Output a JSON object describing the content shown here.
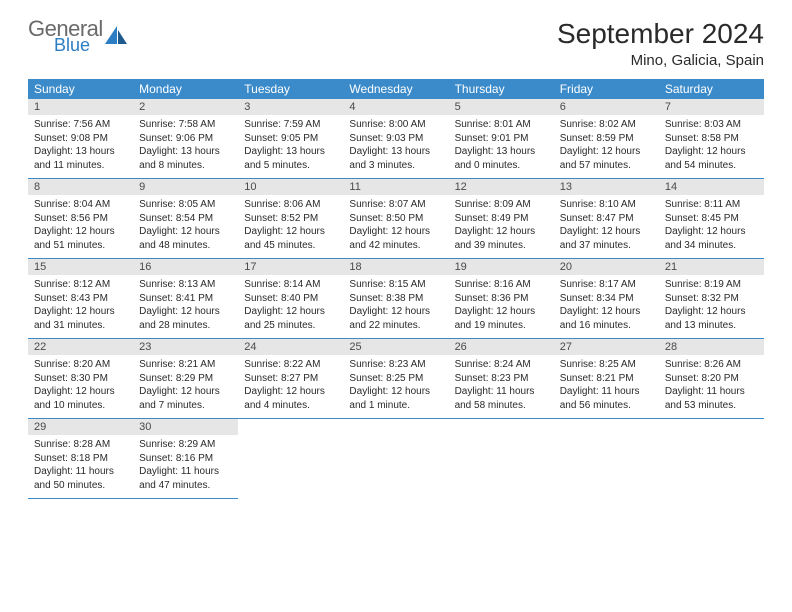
{
  "logo": {
    "general": "General",
    "blue": "Blue"
  },
  "title": "September 2024",
  "location": "Mino, Galicia, Spain",
  "weekdays": [
    "Sunday",
    "Monday",
    "Tuesday",
    "Wednesday",
    "Thursday",
    "Friday",
    "Saturday"
  ],
  "colors": {
    "header_bg": "#3b8ac9",
    "header_text": "#ffffff",
    "daynum_bg": "#e6e6e6",
    "daynum_text": "#4a4a4a",
    "body_text": "#2a2a2a",
    "logo_gray": "#6a6a6a",
    "logo_blue": "#2b7dc4",
    "border": "#3b8ac9"
  },
  "fonts": {
    "title_size": 28,
    "location_size": 15,
    "weekday_size": 12,
    "daynum_size": 11,
    "body_size": 10
  },
  "weeks": [
    [
      {
        "n": "1",
        "sr": "Sunrise: 7:56 AM",
        "ss": "Sunset: 9:08 PM",
        "d1": "Daylight: 13 hours",
        "d2": "and 11 minutes."
      },
      {
        "n": "2",
        "sr": "Sunrise: 7:58 AM",
        "ss": "Sunset: 9:06 PM",
        "d1": "Daylight: 13 hours",
        "d2": "and 8 minutes."
      },
      {
        "n": "3",
        "sr": "Sunrise: 7:59 AM",
        "ss": "Sunset: 9:05 PM",
        "d1": "Daylight: 13 hours",
        "d2": "and 5 minutes."
      },
      {
        "n": "4",
        "sr": "Sunrise: 8:00 AM",
        "ss": "Sunset: 9:03 PM",
        "d1": "Daylight: 13 hours",
        "d2": "and 3 minutes."
      },
      {
        "n": "5",
        "sr": "Sunrise: 8:01 AM",
        "ss": "Sunset: 9:01 PM",
        "d1": "Daylight: 13 hours",
        "d2": "and 0 minutes."
      },
      {
        "n": "6",
        "sr": "Sunrise: 8:02 AM",
        "ss": "Sunset: 8:59 PM",
        "d1": "Daylight: 12 hours",
        "d2": "and 57 minutes."
      },
      {
        "n": "7",
        "sr": "Sunrise: 8:03 AM",
        "ss": "Sunset: 8:58 PM",
        "d1": "Daylight: 12 hours",
        "d2": "and 54 minutes."
      }
    ],
    [
      {
        "n": "8",
        "sr": "Sunrise: 8:04 AM",
        "ss": "Sunset: 8:56 PM",
        "d1": "Daylight: 12 hours",
        "d2": "and 51 minutes."
      },
      {
        "n": "9",
        "sr": "Sunrise: 8:05 AM",
        "ss": "Sunset: 8:54 PM",
        "d1": "Daylight: 12 hours",
        "d2": "and 48 minutes."
      },
      {
        "n": "10",
        "sr": "Sunrise: 8:06 AM",
        "ss": "Sunset: 8:52 PM",
        "d1": "Daylight: 12 hours",
        "d2": "and 45 minutes."
      },
      {
        "n": "11",
        "sr": "Sunrise: 8:07 AM",
        "ss": "Sunset: 8:50 PM",
        "d1": "Daylight: 12 hours",
        "d2": "and 42 minutes."
      },
      {
        "n": "12",
        "sr": "Sunrise: 8:09 AM",
        "ss": "Sunset: 8:49 PM",
        "d1": "Daylight: 12 hours",
        "d2": "and 39 minutes."
      },
      {
        "n": "13",
        "sr": "Sunrise: 8:10 AM",
        "ss": "Sunset: 8:47 PM",
        "d1": "Daylight: 12 hours",
        "d2": "and 37 minutes."
      },
      {
        "n": "14",
        "sr": "Sunrise: 8:11 AM",
        "ss": "Sunset: 8:45 PM",
        "d1": "Daylight: 12 hours",
        "d2": "and 34 minutes."
      }
    ],
    [
      {
        "n": "15",
        "sr": "Sunrise: 8:12 AM",
        "ss": "Sunset: 8:43 PM",
        "d1": "Daylight: 12 hours",
        "d2": "and 31 minutes."
      },
      {
        "n": "16",
        "sr": "Sunrise: 8:13 AM",
        "ss": "Sunset: 8:41 PM",
        "d1": "Daylight: 12 hours",
        "d2": "and 28 minutes."
      },
      {
        "n": "17",
        "sr": "Sunrise: 8:14 AM",
        "ss": "Sunset: 8:40 PM",
        "d1": "Daylight: 12 hours",
        "d2": "and 25 minutes."
      },
      {
        "n": "18",
        "sr": "Sunrise: 8:15 AM",
        "ss": "Sunset: 8:38 PM",
        "d1": "Daylight: 12 hours",
        "d2": "and 22 minutes."
      },
      {
        "n": "19",
        "sr": "Sunrise: 8:16 AM",
        "ss": "Sunset: 8:36 PM",
        "d1": "Daylight: 12 hours",
        "d2": "and 19 minutes."
      },
      {
        "n": "20",
        "sr": "Sunrise: 8:17 AM",
        "ss": "Sunset: 8:34 PM",
        "d1": "Daylight: 12 hours",
        "d2": "and 16 minutes."
      },
      {
        "n": "21",
        "sr": "Sunrise: 8:19 AM",
        "ss": "Sunset: 8:32 PM",
        "d1": "Daylight: 12 hours",
        "d2": "and 13 minutes."
      }
    ],
    [
      {
        "n": "22",
        "sr": "Sunrise: 8:20 AM",
        "ss": "Sunset: 8:30 PM",
        "d1": "Daylight: 12 hours",
        "d2": "and 10 minutes."
      },
      {
        "n": "23",
        "sr": "Sunrise: 8:21 AM",
        "ss": "Sunset: 8:29 PM",
        "d1": "Daylight: 12 hours",
        "d2": "and 7 minutes."
      },
      {
        "n": "24",
        "sr": "Sunrise: 8:22 AM",
        "ss": "Sunset: 8:27 PM",
        "d1": "Daylight: 12 hours",
        "d2": "and 4 minutes."
      },
      {
        "n": "25",
        "sr": "Sunrise: 8:23 AM",
        "ss": "Sunset: 8:25 PM",
        "d1": "Daylight: 12 hours",
        "d2": "and 1 minute."
      },
      {
        "n": "26",
        "sr": "Sunrise: 8:24 AM",
        "ss": "Sunset: 8:23 PM",
        "d1": "Daylight: 11 hours",
        "d2": "and 58 minutes."
      },
      {
        "n": "27",
        "sr": "Sunrise: 8:25 AM",
        "ss": "Sunset: 8:21 PM",
        "d1": "Daylight: 11 hours",
        "d2": "and 56 minutes."
      },
      {
        "n": "28",
        "sr": "Sunrise: 8:26 AM",
        "ss": "Sunset: 8:20 PM",
        "d1": "Daylight: 11 hours",
        "d2": "and 53 minutes."
      }
    ],
    [
      {
        "n": "29",
        "sr": "Sunrise: 8:28 AM",
        "ss": "Sunset: 8:18 PM",
        "d1": "Daylight: 11 hours",
        "d2": "and 50 minutes."
      },
      {
        "n": "30",
        "sr": "Sunrise: 8:29 AM",
        "ss": "Sunset: 8:16 PM",
        "d1": "Daylight: 11 hours",
        "d2": "and 47 minutes."
      },
      null,
      null,
      null,
      null,
      null
    ]
  ]
}
